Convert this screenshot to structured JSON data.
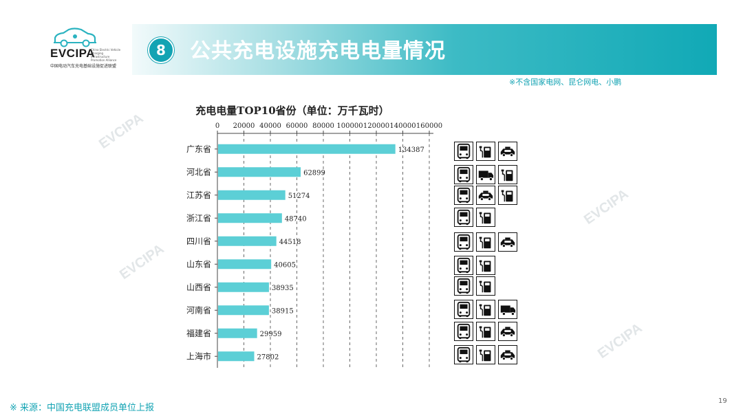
{
  "logo": {
    "brand": "EVCIPA",
    "tagline": "China Electric Vehicle Charging Infrastructure Promotion Alliance",
    "cn_name": "中国电动汽车充电基础设施促进联盟"
  },
  "header": {
    "section_number": "8",
    "title": "公共充电设施充电电量情况"
  },
  "note": "※不含国家电网、昆仑网电、小鹏",
  "watermark": "EVCIPA",
  "chart_data": {
    "type": "bar",
    "orientation": "horizontal",
    "title": "充电电量TOP10省份（单位：万千瓦时）",
    "categories": [
      "广东省",
      "河北省",
      "江苏省",
      "浙江省",
      "四川省",
      "山东省",
      "山西省",
      "河南省",
      "福建省",
      "上海市"
    ],
    "values": [
      134387,
      62899,
      51274,
      48740,
      44518,
      40605,
      38935,
      38915,
      29959,
      27802
    ],
    "xticks": [
      0,
      20000,
      40000,
      60000,
      80000,
      100000,
      120000,
      140000,
      160000
    ],
    "xlim": [
      0,
      160000
    ],
    "xaxis_position": "top",
    "grid": "vertical dashed",
    "bar_color": "#5ccfd6"
  },
  "vehicle_icons": [
    [
      "bus-icon",
      "charger-icon",
      "taxi-icon"
    ],
    [
      "bus-icon",
      "truck-icon",
      "charger-icon"
    ],
    [
      "bus-icon",
      "taxi-icon",
      "charger-icon"
    ],
    [
      "bus-icon",
      "charger-icon"
    ],
    [
      "bus-icon",
      "charger-icon",
      "taxi-icon"
    ],
    [
      "bus-icon",
      "charger-icon"
    ],
    [
      "bus-icon",
      "charger-icon"
    ],
    [
      "bus-icon",
      "charger-icon",
      "truck-icon"
    ],
    [
      "bus-icon",
      "charger-icon",
      "taxi-icon"
    ],
    [
      "bus-icon",
      "charger-icon",
      "taxi-icon"
    ]
  ],
  "footer": {
    "source": "※ 来源：中国充电联盟成员单位上报",
    "page_number": "19"
  },
  "colors": {
    "accent": "#13a3b3",
    "bar": "#5ccfd6",
    "banner_end": "#11a9b6"
  }
}
